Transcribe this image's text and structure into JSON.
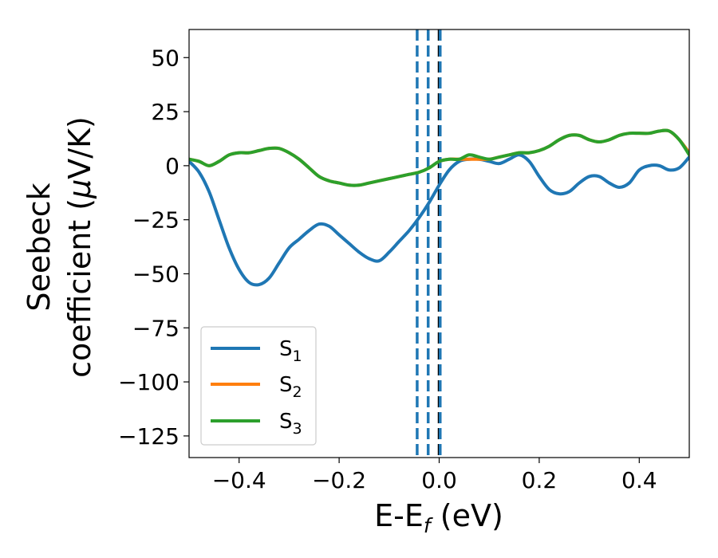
{
  "chart_data": {
    "type": "line",
    "xlabel": "E-E_f (eV)",
    "xlabel_main": "E-E",
    "xlabel_sub": "f",
    "xlabel_unit": " (eV)",
    "ylabel_line1": "Seebeck",
    "ylabel_line2_text": "coefficient  (",
    "ylabel_mu": "μ",
    "ylabel_unit": "V/K)",
    "xlim": [
      -0.5,
      0.5
    ],
    "ylim": [
      -135,
      63
    ],
    "xticks": [
      -0.4,
      -0.2,
      0.0,
      0.2,
      0.4
    ],
    "xtick_labels": [
      "−0.4",
      "−0.2",
      "0.0",
      "0.2",
      "0.4"
    ],
    "yticks": [
      50,
      25,
      0,
      -25,
      -50,
      -75,
      -100,
      -125
    ],
    "ytick_labels": [
      "50",
      "25",
      "0",
      "−25",
      "−50",
      "−75",
      "−100",
      "−125"
    ],
    "vlines": [
      {
        "x": -0.044,
        "color": "#1f77b4",
        "style": "dashed"
      },
      {
        "x": -0.022,
        "color": "#1f77b4",
        "style": "dashed"
      },
      {
        "x": 0.0,
        "color": "#000000",
        "style": "dashed"
      },
      {
        "x": 0.002,
        "color": "#1f77b4",
        "style": "dashed"
      }
    ],
    "legend": {
      "position": "lower-left",
      "entries": [
        {
          "base": "S",
          "sub": "1",
          "color": "#1f77b4"
        },
        {
          "base": "S",
          "sub": "2",
          "color": "#ff7f0e"
        },
        {
          "base": "S",
          "sub": "3",
          "color": "#2ca02c"
        }
      ]
    },
    "series": [
      {
        "name": "S1",
        "color": "#1f77b4",
        "x": [
          -0.5,
          -0.48,
          -0.46,
          -0.44,
          -0.42,
          -0.4,
          -0.38,
          -0.36,
          -0.34,
          -0.32,
          -0.3,
          -0.28,
          -0.26,
          -0.24,
          -0.22,
          -0.2,
          -0.18,
          -0.16,
          -0.14,
          -0.12,
          -0.1,
          -0.08,
          -0.06,
          -0.04,
          -0.02,
          0.0,
          0.02,
          0.04,
          0.06,
          0.08,
          0.1,
          0.12,
          0.14,
          0.16,
          0.18,
          0.2,
          0.22,
          0.24,
          0.26,
          0.28,
          0.3,
          0.32,
          0.34,
          0.36,
          0.38,
          0.4,
          0.42,
          0.44,
          0.46,
          0.48,
          0.5
        ],
        "y": [
          2,
          -3,
          -12,
          -25,
          -38,
          -48,
          -54,
          -55,
          -52,
          -45,
          -38,
          -34,
          -30,
          -27,
          -28,
          -32,
          -36,
          -40,
          -43,
          -44,
          -40,
          -35,
          -30,
          -24,
          -17,
          -9,
          -2,
          2,
          3,
          3,
          2,
          1,
          3,
          5,
          2,
          -5,
          -11,
          -13,
          -12,
          -8,
          -5,
          -5,
          -8,
          -10,
          -8,
          -2,
          0,
          0,
          -2,
          -1,
          4
        ]
      },
      {
        "name": "S2",
        "color": "#ff7f0e",
        "x": [
          -0.5,
          -0.48,
          -0.46,
          -0.44,
          -0.42,
          -0.4,
          -0.38,
          -0.36,
          -0.34,
          -0.32,
          -0.3,
          -0.28,
          -0.26,
          -0.24,
          -0.22,
          -0.2,
          -0.18,
          -0.16,
          -0.14,
          -0.12,
          -0.1,
          -0.08,
          -0.06,
          -0.04,
          -0.02,
          0.0,
          0.02,
          0.04,
          0.06,
          0.08,
          0.1,
          0.12,
          0.14,
          0.16,
          0.18,
          0.2,
          0.22,
          0.24,
          0.26,
          0.28,
          0.3,
          0.32,
          0.34,
          0.36,
          0.38,
          0.4,
          0.42,
          0.44,
          0.46,
          0.48,
          0.5
        ],
        "y": [
          3,
          2,
          0,
          2,
          5,
          6,
          6,
          7,
          8,
          8,
          6,
          3,
          -1,
          -5,
          -7,
          -8,
          -9,
          -9,
          -8,
          -7,
          -6,
          -5,
          -4,
          -3,
          -1,
          2,
          3,
          3,
          3,
          3,
          3,
          4,
          5,
          6,
          6,
          7,
          9,
          12,
          14,
          14,
          12,
          11,
          12,
          14,
          15,
          15,
          15,
          16,
          16,
          12,
          6
        ]
      },
      {
        "name": "S3",
        "color": "#2ca02c",
        "x": [
          -0.5,
          -0.48,
          -0.46,
          -0.44,
          -0.42,
          -0.4,
          -0.38,
          -0.36,
          -0.34,
          -0.32,
          -0.3,
          -0.28,
          -0.26,
          -0.24,
          -0.22,
          -0.2,
          -0.18,
          -0.16,
          -0.14,
          -0.12,
          -0.1,
          -0.08,
          -0.06,
          -0.04,
          -0.02,
          0.0,
          0.02,
          0.04,
          0.06,
          0.08,
          0.1,
          0.12,
          0.14,
          0.16,
          0.18,
          0.2,
          0.22,
          0.24,
          0.26,
          0.28,
          0.3,
          0.32,
          0.34,
          0.36,
          0.38,
          0.4,
          0.42,
          0.44,
          0.46,
          0.48,
          0.5
        ],
        "y": [
          3,
          2,
          0,
          2,
          5,
          6,
          6,
          7,
          8,
          8,
          6,
          3,
          -1,
          -5,
          -7,
          -8,
          -9,
          -9,
          -8,
          -7,
          -6,
          -5,
          -4,
          -3,
          -1,
          2,
          3,
          3,
          5,
          4,
          3,
          4,
          5,
          6,
          6,
          7,
          9,
          12,
          14,
          14,
          12,
          11,
          12,
          14,
          15,
          15,
          15,
          16,
          16,
          12,
          5
        ]
      }
    ]
  }
}
